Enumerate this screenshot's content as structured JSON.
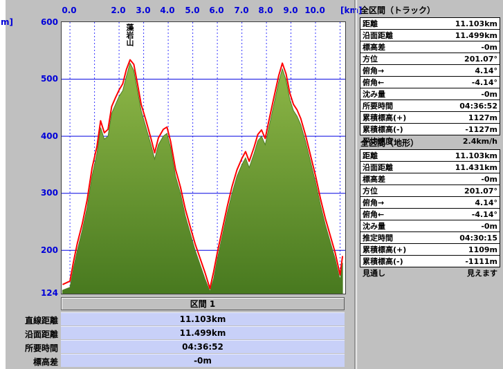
{
  "colors_note": "window bg #c0c0c0, axis text blue, track red, terrain green",
  "chart_data": {
    "type": "area",
    "x_unit": "[km]",
    "y_unit": "m]",
    "x_ticks": [
      "0.0",
      "2.0",
      "3.0",
      "4.0",
      "5.0",
      "6.0",
      "7.0",
      "8.0",
      "9.0",
      "10.0"
    ],
    "y_ticks": [
      "600",
      "500",
      "400",
      "300",
      "200",
      "124"
    ],
    "xlim": [
      -0.34,
      11.21
    ],
    "ylim": [
      124,
      600
    ],
    "hgrid": [
      200,
      300,
      400,
      500
    ],
    "vgrid": [
      0,
      1,
      2,
      3,
      4,
      5,
      6,
      7,
      8,
      9,
      10,
      11
    ],
    "annotation": {
      "text": "藻岩山",
      "x_km": 2.45
    },
    "colors": {
      "grid_solid": "#0000e0",
      "grid_dashed": "#3333ff",
      "track": "#ff0000",
      "terrain_edge": "#4d7d26",
      "fill_top": "#8fb848",
      "fill_bottom": "#48791f",
      "axis_text": "#0000d8"
    },
    "series": [
      {
        "name": "terrain",
        "x": [
          -0.3,
          0.0,
          0.15,
          0.3,
          0.5,
          0.7,
          0.9,
          1.1,
          1.25,
          1.4,
          1.55,
          1.7,
          1.85,
          2.0,
          2.15,
          2.3,
          2.45,
          2.6,
          2.75,
          2.9,
          3.1,
          3.3,
          3.45,
          3.6,
          3.8,
          3.95,
          4.1,
          4.3,
          4.5,
          4.7,
          4.9,
          5.1,
          5.3,
          5.5,
          5.7,
          5.85,
          6.0,
          6.2,
          6.4,
          6.6,
          6.8,
          7.0,
          7.15,
          7.3,
          7.5,
          7.65,
          7.8,
          7.95,
          8.1,
          8.3,
          8.5,
          8.65,
          8.8,
          8.95,
          9.1,
          9.25,
          9.4,
          9.6,
          9.8,
          10.0,
          10.2,
          10.4,
          10.6,
          10.8,
          11.0,
          11.1
        ],
        "y": [
          130,
          135,
          170,
          200,
          235,
          275,
          330,
          370,
          415,
          395,
          400,
          440,
          455,
          470,
          480,
          505,
          528,
          515,
          480,
          445,
          415,
          385,
          360,
          385,
          400,
          405,
          380,
          330,
          300,
          260,
          230,
          200,
          175,
          150,
          128,
          150,
          185,
          225,
          265,
          300,
          330,
          350,
          362,
          345,
          370,
          392,
          400,
          385,
          415,
          455,
          495,
          518,
          498,
          465,
          445,
          435,
          420,
          390,
          355,
          320,
          280,
          245,
          215,
          185,
          148,
          178
        ]
      },
      {
        "name": "track",
        "x": [
          -0.3,
          0.0,
          0.15,
          0.3,
          0.5,
          0.7,
          0.9,
          1.1,
          1.25,
          1.4,
          1.55,
          1.7,
          1.85,
          2.0,
          2.15,
          2.3,
          2.45,
          2.6,
          2.75,
          2.9,
          3.1,
          3.3,
          3.45,
          3.6,
          3.8,
          3.95,
          4.1,
          4.3,
          4.5,
          4.7,
          4.9,
          5.1,
          5.3,
          5.5,
          5.7,
          5.85,
          6.0,
          6.2,
          6.4,
          6.6,
          6.8,
          7.0,
          7.15,
          7.3,
          7.5,
          7.65,
          7.8,
          7.95,
          8.1,
          8.3,
          8.5,
          8.65,
          8.8,
          8.95,
          9.1,
          9.25,
          9.4,
          9.6,
          9.8,
          10.0,
          10.2,
          10.4,
          10.6,
          10.8,
          11.0,
          11.1
        ],
        "y": [
          140,
          146,
          181,
          212,
          246,
          288,
          344,
          382,
          427,
          406,
          412,
          452,
          467,
          481,
          492,
          517,
          534,
          526,
          492,
          456,
          427,
          396,
          371,
          397,
          412,
          416,
          391,
          342,
          311,
          272,
          241,
          211,
          186,
          161,
          133,
          162,
          196,
          236,
          276,
          312,
          341,
          361,
          373,
          356,
          381,
          403,
          411,
          396,
          427,
          467,
          506,
          528,
          509,
          476,
          456,
          446,
          431,
          401,
          366,
          331,
          291,
          256,
          226,
          196,
          157,
          190
        ]
      }
    ]
  },
  "segment": {
    "header": "区間 1",
    "rows": [
      {
        "label": "直線距離",
        "value": "11.103km"
      },
      {
        "label": "沿面距離",
        "value": "11.499km"
      },
      {
        "label": "所要時間",
        "value": "04:36:52"
      },
      {
        "label": "標高差",
        "value": "-0m"
      }
    ]
  },
  "panels": {
    "track": {
      "title": "全区間（トラック）",
      "rows": [
        {
          "label": "距離",
          "value": "11.103km"
        },
        {
          "label": "沿面距離",
          "value": "11.499km"
        },
        {
          "label": "標高差",
          "value": "-0m"
        },
        {
          "label": "方位",
          "value": "201.07°"
        },
        {
          "label": "俯角→",
          "value": "4.14°"
        },
        {
          "label": "俯角←",
          "value": "-4.14°"
        },
        {
          "label": "沈み量",
          "value": "-0m"
        },
        {
          "label": "所要時間",
          "value": "04:36:52"
        },
        {
          "label": "累積標高(+)",
          "value": "1127m"
        },
        {
          "label": "累積標高(-)",
          "value": "-1127m"
        },
        {
          "label": "平均速度",
          "value": "2.4km/h"
        }
      ]
    },
    "terrain": {
      "title": "全区間（地形）",
      "rows": [
        {
          "label": "距離",
          "value": "11.103km"
        },
        {
          "label": "沿面距離",
          "value": "11.431km"
        },
        {
          "label": "標高差",
          "value": "-0m"
        },
        {
          "label": "方位",
          "value": "201.07°"
        },
        {
          "label": "俯角→",
          "value": "4.14°"
        },
        {
          "label": "俯角←",
          "value": "-4.14°"
        },
        {
          "label": "沈み量",
          "value": "-0m"
        },
        {
          "label": "推定時間",
          "value": "04:30:15"
        },
        {
          "label": "累積標高(+)",
          "value": "1109m"
        },
        {
          "label": "累積標高(-)",
          "value": "-1111m"
        },
        {
          "label": "見通し",
          "value": "見えます"
        }
      ]
    }
  }
}
